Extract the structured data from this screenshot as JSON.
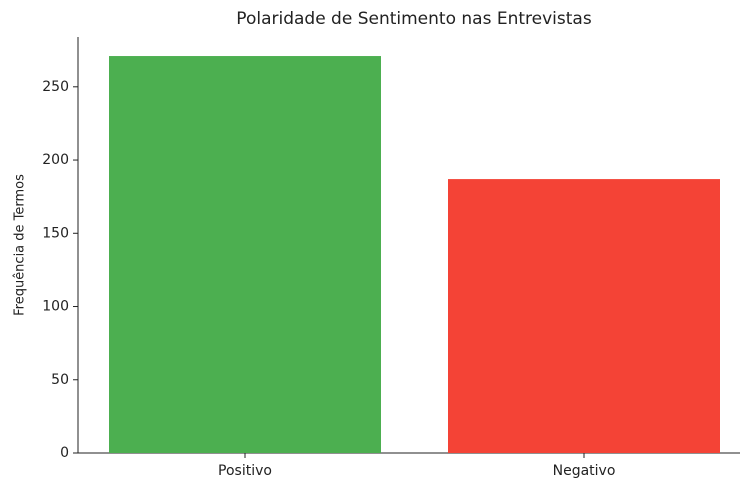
{
  "chart_data": {
    "type": "bar",
    "title": "Polaridade de Sentimento nas Entrevistas",
    "ylabel": "Frequência de Termos",
    "categories": [
      "Positivo",
      "Negativo"
    ],
    "values": [
      271,
      187
    ],
    "colors": [
      "#4caf50",
      "#f44336"
    ],
    "ylim": [
      0,
      284
    ],
    "yticks": [
      0,
      50,
      100,
      150,
      200,
      250
    ],
    "grid": false
  }
}
